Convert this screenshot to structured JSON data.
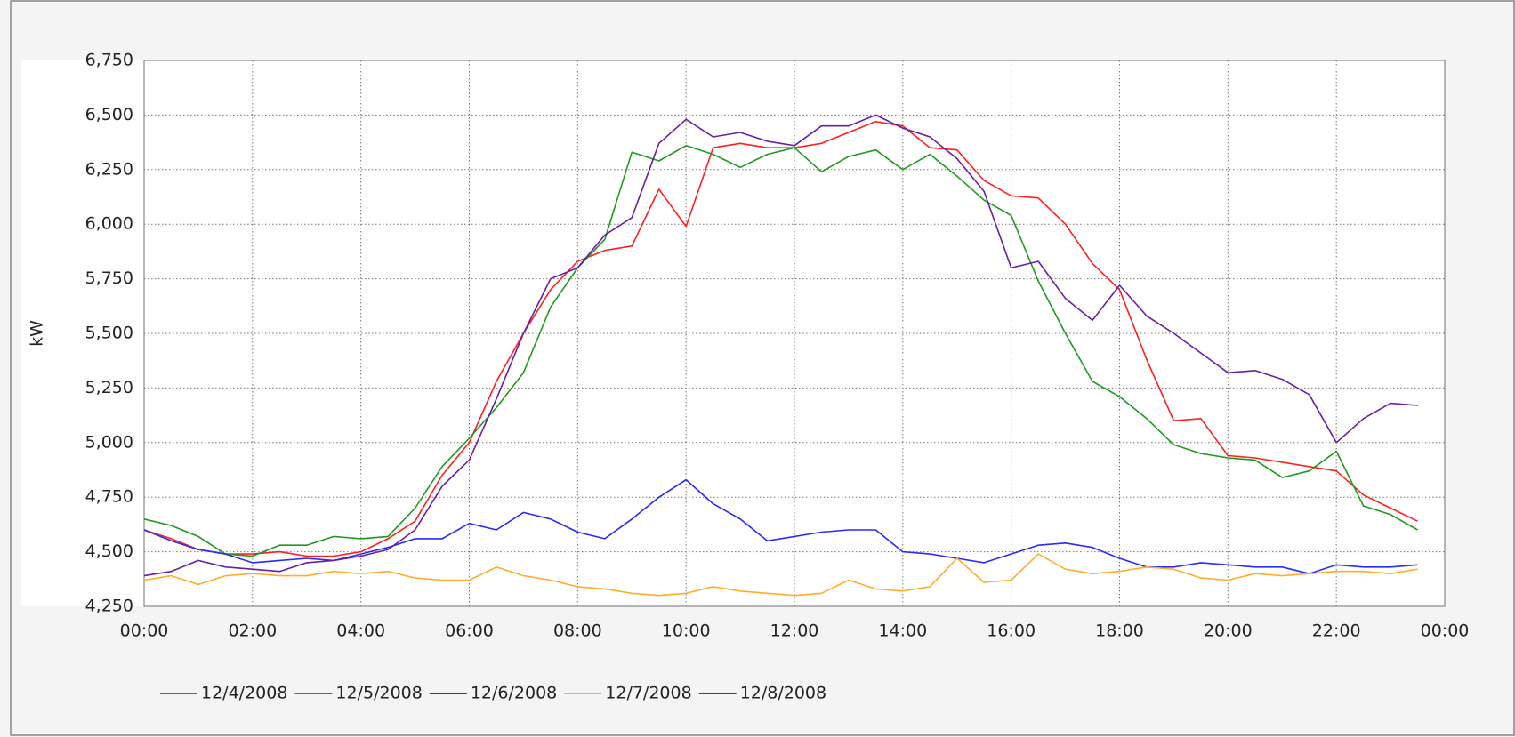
{
  "chart_data": {
    "type": "line",
    "ylabel": "kW",
    "x": [
      0,
      0.5,
      1,
      1.5,
      2,
      2.5,
      3,
      3.5,
      4,
      4.5,
      5,
      5.5,
      6,
      6.5,
      7,
      7.5,
      8,
      8.5,
      9,
      9.5,
      10,
      10.5,
      11,
      11.5,
      12,
      12.5,
      13,
      13.5,
      14,
      14.5,
      15,
      15.5,
      16,
      16.5,
      17,
      17.5,
      18,
      18.5,
      19,
      19.5,
      20,
      20.5,
      21,
      21.5,
      22,
      22.5,
      23,
      23.5
    ],
    "xlim": [
      0,
      24
    ],
    "xticks": [
      {
        "value": 0,
        "label": "00:00"
      },
      {
        "value": 2,
        "label": "02:00"
      },
      {
        "value": 4,
        "label": "04:00"
      },
      {
        "value": 6,
        "label": "06:00"
      },
      {
        "value": 8,
        "label": "08:00"
      },
      {
        "value": 10,
        "label": "10:00"
      },
      {
        "value": 12,
        "label": "12:00"
      },
      {
        "value": 14,
        "label": "14:00"
      },
      {
        "value": 16,
        "label": "16:00"
      },
      {
        "value": 18,
        "label": "18:00"
      },
      {
        "value": 20,
        "label": "20:00"
      },
      {
        "value": 22,
        "label": "22:00"
      },
      {
        "value": 24,
        "label": "00:00"
      }
    ],
    "ylim": [
      4250,
      6750
    ],
    "yticks": [
      {
        "value": 4250,
        "label": "4,250"
      },
      {
        "value": 4500,
        "label": "4,500"
      },
      {
        "value": 4750,
        "label": "4,750"
      },
      {
        "value": 5000,
        "label": "5,000"
      },
      {
        "value": 5250,
        "label": "5,250"
      },
      {
        "value": 5500,
        "label": "5,500"
      },
      {
        "value": 5750,
        "label": "5,750"
      },
      {
        "value": 6000,
        "label": "6,000"
      },
      {
        "value": 6250,
        "label": "6,250"
      },
      {
        "value": 6500,
        "label": "6,500"
      },
      {
        "value": 6750,
        "label": "6,750"
      }
    ],
    "grid": true,
    "legend": "bottom",
    "series": [
      {
        "name": "12/4/2008",
        "color": "#ff2020",
        "values": [
          4600,
          4560,
          4510,
          4490,
          4490,
          4500,
          4480,
          4480,
          4500,
          4560,
          4640,
          4850,
          5000,
          5280,
          5500,
          5700,
          5830,
          5880,
          5900,
          6160,
          5990,
          6350,
          6370,
          6350,
          6350,
          6370,
          6420,
          6470,
          6450,
          6350,
          6340,
          6200,
          6130,
          6120,
          6000,
          5820,
          5700,
          5380,
          5100,
          5110,
          4940,
          4930,
          4910,
          4890,
          4870,
          4760,
          4700,
          4640
        ]
      },
      {
        "name": "12/5/2008",
        "color": "#1e9a1e",
        "values": [
          4650,
          4620,
          4570,
          4490,
          4480,
          4530,
          4530,
          4570,
          4560,
          4570,
          4700,
          4890,
          5020,
          5160,
          5320,
          5620,
          5800,
          5930,
          6330,
          6290,
          6360,
          6320,
          6260,
          6320,
          6350,
          6240,
          6310,
          6340,
          6250,
          6320,
          6220,
          6110,
          6040,
          5740,
          5500,
          5280,
          5210,
          5110,
          4990,
          4950,
          4930,
          4920,
          4840,
          4870,
          4960,
          4710,
          4670,
          4600
        ]
      },
      {
        "name": "12/6/2008",
        "color": "#2a2aff",
        "values": [
          4600,
          4550,
          4510,
          4490,
          4450,
          4460,
          4470,
          4460,
          4490,
          4520,
          4560,
          4560,
          4630,
          4600,
          4680,
          4650,
          4590,
          4560,
          4650,
          4750,
          4830,
          4720,
          4650,
          4550,
          4570,
          4590,
          4600,
          4600,
          4500,
          4490,
          4470,
          4450,
          4490,
          4530,
          4540,
          4520,
          4470,
          4430,
          4430,
          4450,
          4440,
          4430,
          4430,
          4400,
          4440,
          4430,
          4430,
          4440
        ]
      },
      {
        "name": "12/7/2008",
        "color": "#ffad2a",
        "values": [
          4370,
          4390,
          4350,
          4390,
          4400,
          4390,
          4390,
          4410,
          4400,
          4410,
          4380,
          4370,
          4370,
          4430,
          4390,
          4370,
          4340,
          4330,
          4310,
          4300,
          4310,
          4340,
          4320,
          4310,
          4300,
          4310,
          4370,
          4330,
          4320,
          4340,
          4470,
          4360,
          4370,
          4490,
          4420,
          4400,
          4410,
          4430,
          4420,
          4380,
          4370,
          4400,
          4390,
          4400,
          4410,
          4410,
          4400,
          4420
        ]
      },
      {
        "name": "12/8/2008",
        "color": "#6a1ea8",
        "values": [
          4390,
          4410,
          4460,
          4430,
          4420,
          4410,
          4450,
          4460,
          4480,
          4510,
          4600,
          4800,
          4920,
          5200,
          5500,
          5750,
          5800,
          5950,
          6030,
          6370,
          6480,
          6400,
          6420,
          6380,
          6360,
          6450,
          6450,
          6500,
          6440,
          6400,
          6300,
          6150,
          5800,
          5830,
          5660,
          5560,
          5720,
          5580,
          5500,
          5410,
          5320,
          5330,
          5290,
          5220,
          5000,
          5110,
          5180,
          5170
        ]
      }
    ]
  }
}
